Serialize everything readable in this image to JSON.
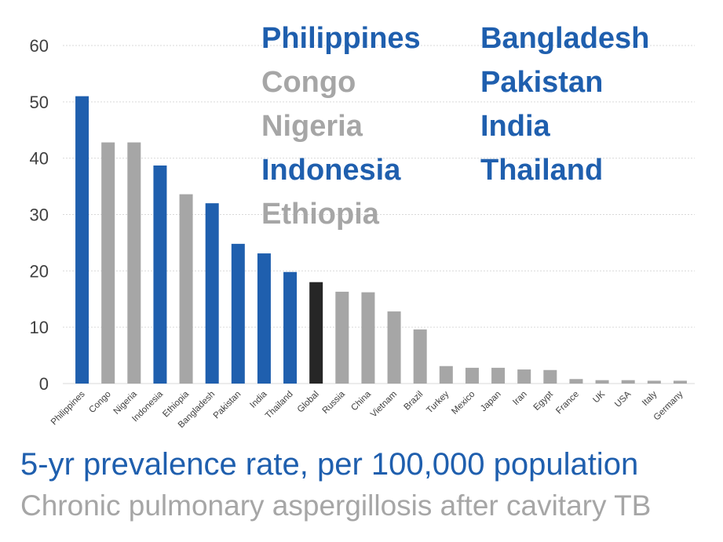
{
  "colors": {
    "blue": "#1f5fae",
    "gray": "#a6a6a6",
    "black": "#262626",
    "axis_text": "#404040",
    "grid": "#d9d9d9"
  },
  "chart_data": {
    "type": "bar",
    "categories": [
      "Philippines",
      "Congo",
      "Nigeria",
      "Indonesia",
      "Ethiopia",
      "Bangladesh",
      "Pakistan",
      "India",
      "Thailand",
      "Global",
      "Russia",
      "China",
      "Vietnam",
      "Brazil",
      "Turkey",
      "Mexico",
      "Japan",
      "Iran",
      "Egypt",
      "France",
      "UK",
      "USA",
      "Italy",
      "Germany"
    ],
    "values": [
      51,
      42.8,
      42.8,
      38.7,
      33.6,
      32,
      24.8,
      23.1,
      19.8,
      18,
      16.3,
      16.2,
      12.8,
      9.6,
      3.1,
      2.8,
      2.8,
      2.5,
      2.4,
      0.8,
      0.6,
      0.6,
      0.5,
      0.5
    ],
    "bar_colors": [
      "blue",
      "gray",
      "gray",
      "blue",
      "gray",
      "blue",
      "blue",
      "blue",
      "blue",
      "black",
      "gray",
      "gray",
      "gray",
      "gray",
      "gray",
      "gray",
      "gray",
      "gray",
      "gray",
      "gray",
      "gray",
      "gray",
      "gray",
      "gray"
    ],
    "ylim": [
      0,
      60
    ],
    "yticks": [
      0,
      10,
      20,
      30,
      40,
      50,
      60
    ],
    "grid": true,
    "title": "",
    "xlabel": "",
    "ylabel": "",
    "annotation_columns": [
      [
        {
          "text": "Philippines",
          "color": "blue"
        },
        {
          "text": "Congo",
          "color": "gray"
        },
        {
          "text": "Nigeria",
          "color": "gray"
        },
        {
          "text": "Indonesia",
          "color": "blue"
        },
        {
          "text": "Ethiopia",
          "color": "gray"
        }
      ],
      [
        {
          "text": "Bangladesh",
          "color": "blue"
        },
        {
          "text": "Pakistan",
          "color": "blue"
        },
        {
          "text": "India",
          "color": "blue"
        },
        {
          "text": "Thailand",
          "color": "blue"
        }
      ]
    ]
  },
  "caption": {
    "main": "5-yr prevalence rate, per 100,000 population",
    "sub": "Chronic pulmonary aspergillosis after cavitary TB",
    "main_color": "#1f5fae",
    "sub_color": "#a6a6a6"
  }
}
